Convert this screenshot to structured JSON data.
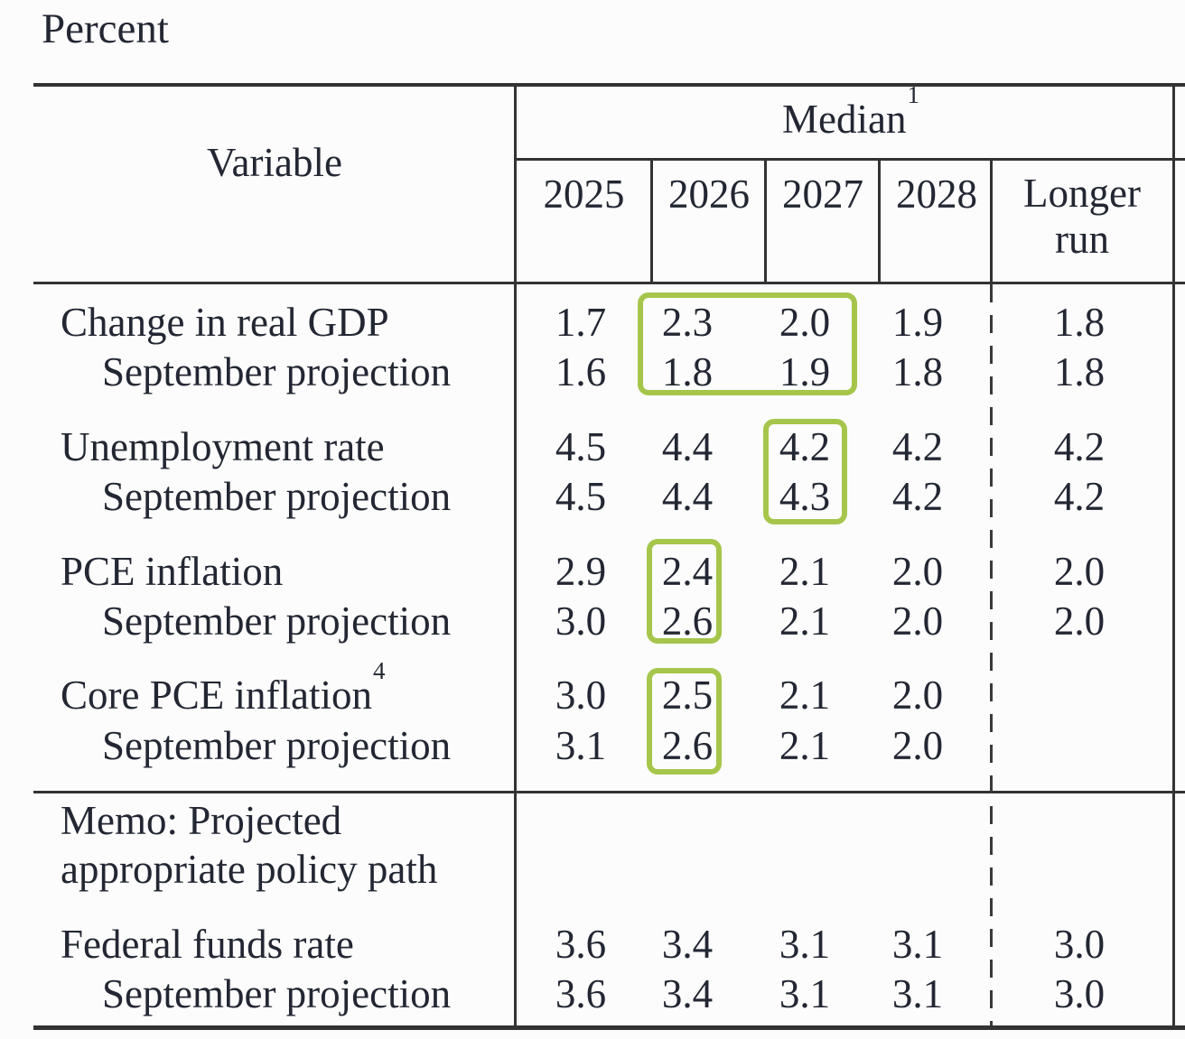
{
  "title": "Percent",
  "table": {
    "variable_header": "Variable",
    "median_label": "Median",
    "median_sup": "1",
    "years": [
      "2025",
      "2026",
      "2027",
      "2028"
    ],
    "longer_run_label": "Longer run",
    "rows": [
      {
        "label": "Change in real GDP",
        "sup": "",
        "indent": false,
        "values": [
          "1.7",
          "2.3",
          "2.0",
          "1.9",
          "1.8"
        ]
      },
      {
        "label": "September projection",
        "sup": "",
        "indent": true,
        "values": [
          "1.6",
          "1.8",
          "1.9",
          "1.8",
          "1.8"
        ]
      },
      {
        "label": "Unemployment rate",
        "sup": "",
        "indent": false,
        "values": [
          "4.5",
          "4.4",
          "4.2",
          "4.2",
          "4.2"
        ]
      },
      {
        "label": "September projection",
        "sup": "",
        "indent": true,
        "values": [
          "4.5",
          "4.4",
          "4.3",
          "4.2",
          "4.2"
        ]
      },
      {
        "label": "PCE inflation",
        "sup": "",
        "indent": false,
        "values": [
          "2.9",
          "2.4",
          "2.1",
          "2.0",
          "2.0"
        ]
      },
      {
        "label": "September projection",
        "sup": "",
        "indent": true,
        "values": [
          "3.0",
          "2.6",
          "2.1",
          "2.0",
          "2.0"
        ]
      },
      {
        "label": "Core PCE inflation",
        "sup": "4",
        "indent": false,
        "values": [
          "3.0",
          "2.5",
          "2.1",
          "2.0",
          ""
        ]
      },
      {
        "label": "September projection",
        "sup": "",
        "indent": true,
        "values": [
          "3.1",
          "2.6",
          "2.1",
          "2.0",
          ""
        ]
      },
      {
        "label": "Federal funds rate",
        "sup": "",
        "indent": false,
        "values": [
          "3.6",
          "3.4",
          "3.1",
          "3.1",
          "3.0"
        ]
      },
      {
        "label": "September projection",
        "sup": "",
        "indent": true,
        "values": [
          "3.6",
          "3.4",
          "3.1",
          "3.1",
          "3.0"
        ]
      }
    ],
    "memo": {
      "line1": "Memo:  Projected",
      "line2": "appropriate policy path"
    }
  },
  "highlights": {
    "color": "#a5c64b",
    "boxes": [
      {
        "variable": "Change in real GDP / September projection",
        "years": "2026-2027"
      },
      {
        "variable": "Unemployment rate / September projection",
        "years": "2027"
      },
      {
        "variable": "PCE inflation / September projection",
        "years": "2026"
      },
      {
        "variable": "Core PCE inflation / September projection",
        "years": "2026"
      }
    ]
  },
  "colors": {
    "text": "#232733",
    "rule": "#333333",
    "highlight": "#a5c64b",
    "background": "#fcfcfc"
  }
}
